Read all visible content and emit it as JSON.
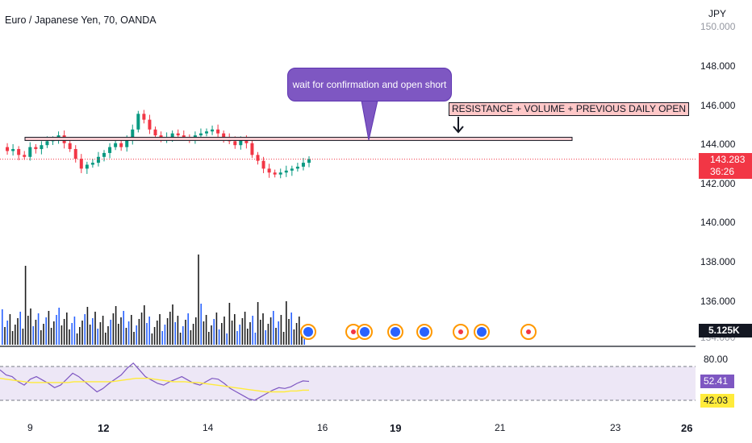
{
  "header": {
    "title": "Euro / Japanese Yen, 70, OANDA"
  },
  "price_axis": {
    "currency": "JPY",
    "ticks": [
      "150.000",
      "148.000",
      "146.000",
      "144.000",
      "142.000",
      "140.000",
      "138.000",
      "136.000",
      "134.000"
    ],
    "current_price": "143.283",
    "countdown": "36:26"
  },
  "volume": {
    "current_label": "5.125K"
  },
  "rsi": {
    "upper_label": "80.00",
    "value_label": "52.41",
    "ma_label": "42.03"
  },
  "time_axis": {
    "ticks": [
      "9",
      "12",
      "14",
      "16",
      "19",
      "21",
      "23",
      "26"
    ]
  },
  "annotations": {
    "callout_text": "wait for confirmation and open short",
    "resistance_text": "RESISTANCE + VOLUME + PREVIOUS DAILY OPEN"
  },
  "colors": {
    "bull": "#089981",
    "bear": "#f23645",
    "rsi_line": "#7e57c2",
    "rsi_ma": "#ffeb3b",
    "rsi_band": "#ede7f6",
    "volume": "#1e1e1e",
    "volume_up": "#2962ff"
  },
  "chart_data": {
    "type": "candlestick",
    "title": "Euro / Japanese Yen, 70, OANDA",
    "y_unit": "JPY",
    "ylim": [
      134,
      150.6
    ],
    "current_price": 143.283,
    "resistance_level": 144.32,
    "price_path": [
      143.9,
      143.7,
      143.8,
      143.5,
      143.4,
      143.9,
      143.8,
      144.0,
      144.2,
      144.3,
      144.5,
      144.1,
      143.8,
      143.3,
      142.8,
      143.0,
      143.1,
      143.4,
      143.6,
      143.9,
      144.1,
      143.9,
      144.3,
      144.8,
      145.6,
      145.3,
      144.8,
      144.5,
      144.3,
      144.4,
      144.6,
      144.5,
      144.4,
      144.3,
      144.5,
      144.6,
      144.7,
      144.8,
      144.6,
      144.4,
      144.2,
      144.0,
      144.3,
      144.1,
      143.5,
      143.2,
      142.8,
      142.6,
      142.5,
      142.6,
      142.7,
      142.8,
      142.9,
      143.1,
      143.283
    ],
    "rsi": {
      "levels": [
        70,
        30
      ],
      "upper_label": 80.0,
      "value": 52.41,
      "ma_value": 42.03,
      "rsi_path": [
        66,
        60,
        58,
        52,
        48,
        55,
        58,
        54,
        50,
        45,
        48,
        55,
        62,
        58,
        52,
        46,
        40,
        44,
        50,
        55,
        60,
        68,
        74,
        66,
        58,
        54,
        50,
        48,
        52,
        55,
        58,
        54,
        50,
        48,
        52,
        56,
        55,
        50,
        44,
        40,
        36,
        32,
        30,
        34,
        38,
        42,
        45,
        44,
        46,
        50,
        53,
        52.41
      ],
      "ma_path": [
        56,
        55,
        54,
        53,
        52,
        51,
        51,
        51,
        51,
        51,
        51,
        51,
        52,
        52,
        52,
        52,
        52,
        52,
        52,
        53,
        54,
        55,
        56,
        56,
        56,
        55,
        54,
        53,
        52,
        52,
        52,
        51,
        51,
        50,
        49,
        48,
        47,
        46,
        45,
        44,
        43,
        42,
        41,
        40,
        40,
        40,
        40,
        41,
        41,
        42,
        42.03
      ]
    }
  }
}
